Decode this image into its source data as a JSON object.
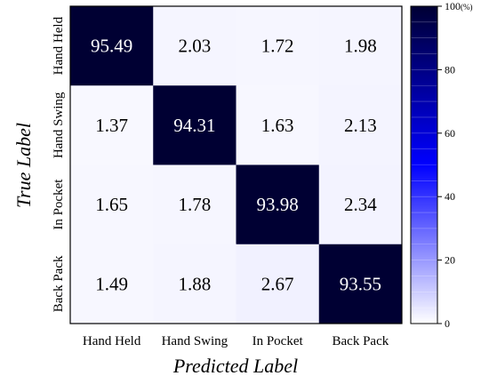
{
  "chart_data": {
    "type": "heatmap",
    "title": "",
    "xlabel": "Predicted Label",
    "ylabel": "True Label",
    "x_categories": [
      "Hand Held",
      "Hand Swing",
      "In Pocket",
      "Back Pack"
    ],
    "y_categories": [
      "Hand Held",
      "Hand Swing",
      "In Pocket",
      "Back Pack"
    ],
    "values": [
      [
        95.49,
        2.03,
        1.72,
        1.98
      ],
      [
        1.37,
        94.31,
        1.63,
        2.13
      ],
      [
        1.65,
        1.78,
        93.98,
        2.34
      ],
      [
        1.49,
        1.88,
        2.67,
        93.55
      ]
    ],
    "cell_labels": [
      [
        "95.49",
        "2.03",
        "1.72",
        "1.98"
      ],
      [
        "1.37",
        "94.31",
        "1.63",
        "2.13"
      ],
      [
        "1.65",
        "1.78",
        "93.98",
        "2.34"
      ],
      [
        "1.49",
        "1.88",
        "2.67",
        "93.55"
      ]
    ],
    "colorbar": {
      "range": [
        0,
        100
      ],
      "ticks": [
        0,
        20,
        40,
        60,
        80,
        100
      ],
      "tick_labels": [
        "0",
        "20",
        "40",
        "60",
        "80",
        "100"
      ],
      "top_unit": "(%)",
      "low_color": "#ffffff",
      "mid_color": "#0000ff",
      "high_color": "#000033",
      "placement": "right"
    },
    "colors": {
      "diagonal": "#000033",
      "off_diagonal": "#ffffff",
      "text_on_dark": "#ffffff",
      "text_on_light": "#000000"
    }
  }
}
